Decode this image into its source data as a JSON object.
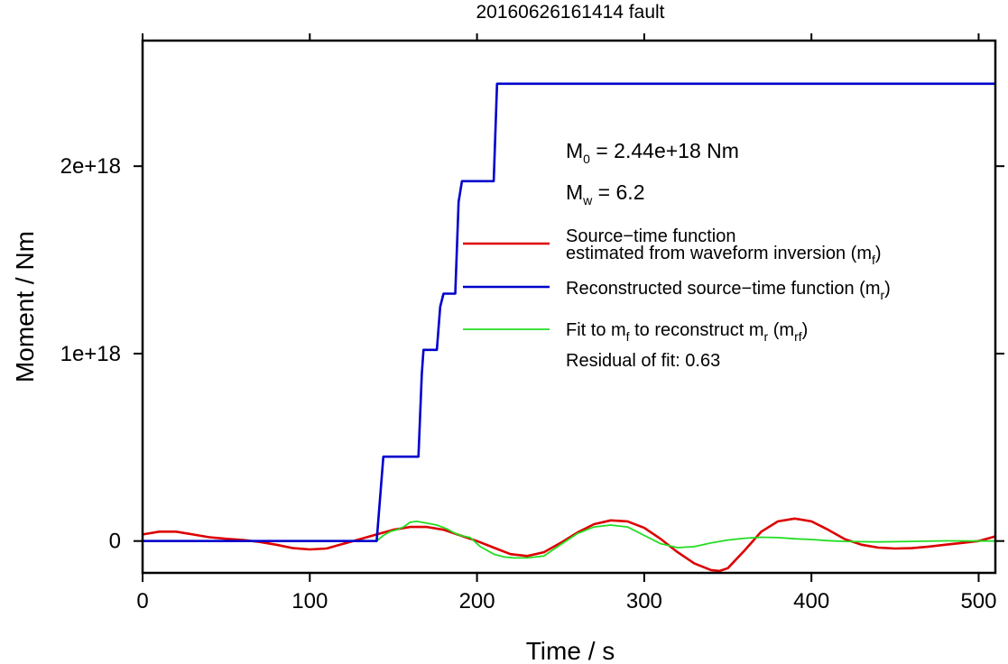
{
  "chart_data": {
    "type": "line",
    "title": "20160626161414 fault",
    "xlabel": "Time / s",
    "ylabel": "Moment / Nm",
    "xlim": [
      0,
      510
    ],
    "ylim": [
      -1.7e+17,
      2.67e+18
    ],
    "x_ticks": [
      0,
      100,
      200,
      300,
      400,
      500
    ],
    "x_tick_labels": [
      "0",
      "100",
      "200",
      "300",
      "400",
      "500"
    ],
    "y_ticks": [
      0,
      1e+18,
      2e+18
    ],
    "y_tick_labels": [
      "0",
      "1e+18",
      "2e+18"
    ],
    "grid": false,
    "legend_position": "right",
    "annotations": {
      "m0": {
        "prefix": "M",
        "sub": "0",
        "text": " = 2.44e+18 Nm"
      },
      "mw": {
        "prefix": "M",
        "sub": "w",
        "text": " = 6.2"
      },
      "residual": "Residual of fit: 0.63"
    },
    "legend": [
      {
        "color": "#dd0000",
        "width": 2.6,
        "lines": [
          "Source−time function",
          "estimated from waveform inversion (m",
          "f",
          ")"
        ]
      },
      {
        "color": "#0000cc",
        "width": 2.6,
        "lines": [
          "Reconstructed source−time function (m",
          "r",
          ")"
        ]
      },
      {
        "color": "#22dd22",
        "width": 1.8,
        "lines": [
          "Fit to m",
          "f",
          " to reconstruct m",
          "r",
          " (m",
          "rf",
          ")"
        ]
      }
    ],
    "series": [
      {
        "name": "Reconstructed source−time function (m_r)",
        "color": "#0000cc",
        "width": 2.6,
        "x": [
          0,
          140,
          144,
          165,
          167,
          168,
          176,
          178,
          180,
          187,
          189,
          191,
          210,
          212,
          510
        ],
        "y": [
          0,
          0,
          4.5e+17,
          4.5e+17,
          8.9e+17,
          1.02e+18,
          1.02e+18,
          1.25e+18,
          1.32e+18,
          1.32e+18,
          1.81e+18,
          1.92e+18,
          1.92e+18,
          2.44e+18,
          2.44e+18
        ]
      },
      {
        "name": "Source−time function estimated from waveform inversion (m_f)",
        "color": "#dd0000",
        "width": 2.6,
        "x": [
          0,
          10,
          20,
          30,
          40,
          50,
          60,
          70,
          80,
          90,
          100,
          110,
          120,
          130,
          140,
          150,
          160,
          170,
          180,
          190,
          200,
          210,
          220,
          230,
          240,
          250,
          260,
          270,
          280,
          290,
          300,
          310,
          320,
          330,
          340,
          345,
          350,
          360,
          370,
          380,
          390,
          400,
          410,
          420,
          430,
          440,
          450,
          460,
          470,
          480,
          490,
          500,
          510
        ],
        "y": [
          3.5e+16,
          5e+16,
          5e+16,
          3.5e+16,
          2e+16,
          1.2e+16,
          5000000000000000.0,
          -5000000000000000.0,
          -2e+16,
          -3.8e+16,
          -4.5e+16,
          -4e+16,
          -1.5e+16,
          1e+16,
          3.5e+16,
          6e+16,
          7.5e+16,
          7.5e+16,
          6e+16,
          3e+16,
          0,
          -3.5e+16,
          -7e+16,
          -8e+16,
          -6e+16,
          -1e+16,
          4.5e+16,
          9e+16,
          1.1e+17,
          1.05e+17,
          7e+16,
          1e+16,
          -6e+16,
          -1.2e+17,
          -1.55e+17,
          -1.6e+17,
          -1.45e+17,
          -5e+16,
          5e+16,
          1.05e+17,
          1.2e+17,
          1.05e+17,
          6e+16,
          1e+16,
          -2e+16,
          -3.5e+16,
          -4e+16,
          -3.8e+16,
          -3e+16,
          -2e+16,
          -1e+16,
          0,
          2.5e+16
        ]
      },
      {
        "name": "Fit to m_f to reconstruct m_r (m_rf)",
        "color": "#22dd22",
        "width": 1.8,
        "x": [
          0,
          140,
          144,
          148,
          152,
          156,
          160,
          164,
          170,
          176,
          182,
          186,
          190,
          196,
          202,
          210,
          216,
          222,
          230,
          240,
          250,
          260,
          270,
          280,
          290,
          300,
          310,
          320,
          330,
          340,
          350,
          360,
          370,
          380,
          390,
          400,
          410,
          420,
          440,
          460,
          480,
          500,
          510
        ],
        "y": [
          0,
          0,
          3e+16,
          5e+16,
          6e+16,
          7.5e+16,
          1e+17,
          1.05e+17,
          9.5e+16,
          8.5e+16,
          6.5e+16,
          4.5e+16,
          3e+16,
          1.8e+16,
          -3e+16,
          -7e+16,
          -8.5e+16,
          -9e+16,
          -9e+16,
          -8e+16,
          -2e+16,
          4e+16,
          7.5e+16,
          8.5e+16,
          7.5e+16,
          3e+16,
          -1.5e+16,
          -3.5e+16,
          -3e+16,
          -1e+16,
          5000000000000000.0,
          1.5e+16,
          2e+16,
          1.8e+16,
          1.2e+16,
          8000000000000000.0,
          2000000000000000.0,
          -2000000000000000.0,
          -5000000000000000.0,
          -2000000000000000.0,
          1000000000000000.0,
          0,
          0
        ]
      }
    ]
  }
}
